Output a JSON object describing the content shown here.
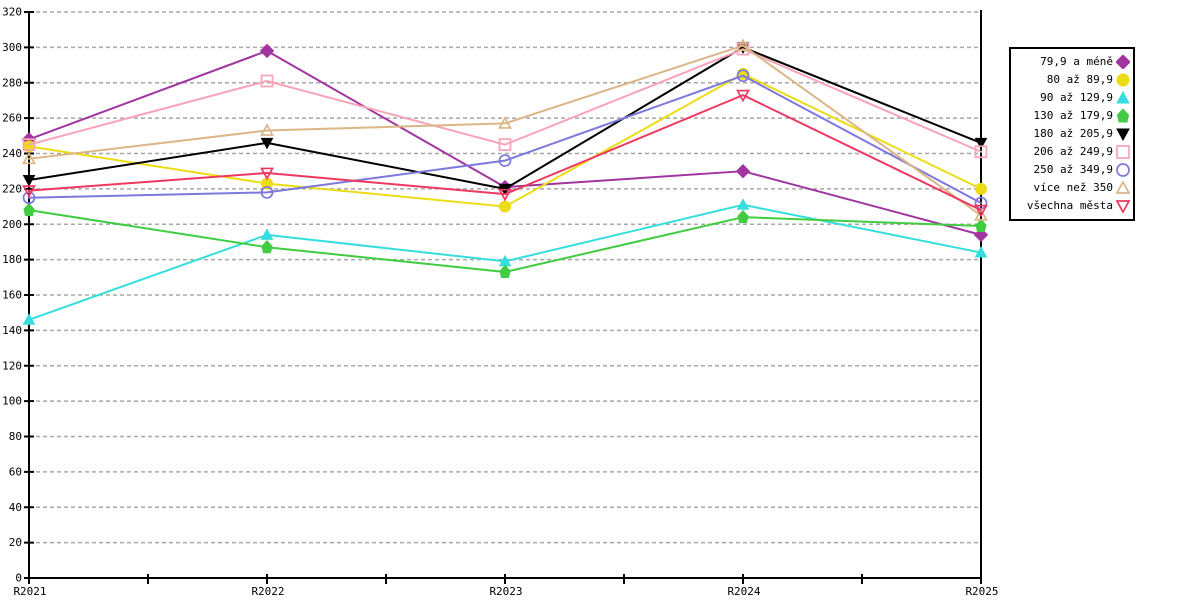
{
  "chart_data": {
    "type": "line",
    "title": "",
    "xlabel": "",
    "ylabel": "",
    "x_categories": [
      "R2021",
      "R2022",
      "R2023",
      "R2024",
      "R2025"
    ],
    "ylim": [
      0,
      320
    ],
    "y_tick_step": 20,
    "y_tick_labels": [
      "20",
      "40",
      "60",
      "80",
      "100",
      "120",
      "140",
      "160",
      "180",
      "200",
      "220",
      "240",
      "260",
      "280",
      "300",
      "320"
    ],
    "origin_label": "0",
    "grid": "horizontal-dashed",
    "grid_color": "#a8a8a8",
    "axis_color": "#000000",
    "legend_position": "right",
    "series": [
      {
        "name": "79,9 a méně",
        "color": "#a034a0",
        "marker": "diamond",
        "filled": true,
        "values": [
          248,
          298,
          221,
          230,
          194
        ]
      },
      {
        "name": "80 až 89,9",
        "color": "#ecdc14",
        "marker": "circle",
        "filled": true,
        "values": [
          244,
          223,
          210,
          285,
          220
        ]
      },
      {
        "name": "90 až 129,9",
        "color": "#35dede",
        "marker": "triangle-up",
        "filled": true,
        "values": [
          146,
          194,
          179,
          211,
          184
        ]
      },
      {
        "name": "130 až 179,9",
        "color": "#41cc41",
        "marker": "pentagon",
        "filled": true,
        "values": [
          208,
          187,
          173,
          204,
          199
        ]
      },
      {
        "name": "180 až 205,9",
        "color": "#000000",
        "marker": "triangle-down",
        "filled": true,
        "values": [
          225,
          246,
          220,
          300,
          246
        ]
      },
      {
        "name": "206 až 249,9",
        "color": "#f8a4b8",
        "marker": "square",
        "filled": false,
        "values": [
          245,
          281,
          245,
          299,
          241
        ]
      },
      {
        "name": "250 až 349,9",
        "color": "#7c78dc",
        "marker": "circle",
        "filled": false,
        "values": [
          215,
          218,
          236,
          284,
          212
        ]
      },
      {
        "name": "více než 350",
        "color": "#dbb687",
        "marker": "triangle-up",
        "filled": false,
        "values": [
          237,
          253,
          257,
          301,
          205
        ]
      },
      {
        "name": "všechna města",
        "color": "#ee3860",
        "marker": "triangle-down",
        "filled": false,
        "values": [
          219,
          229,
          217,
          273,
          208
        ]
      }
    ]
  }
}
